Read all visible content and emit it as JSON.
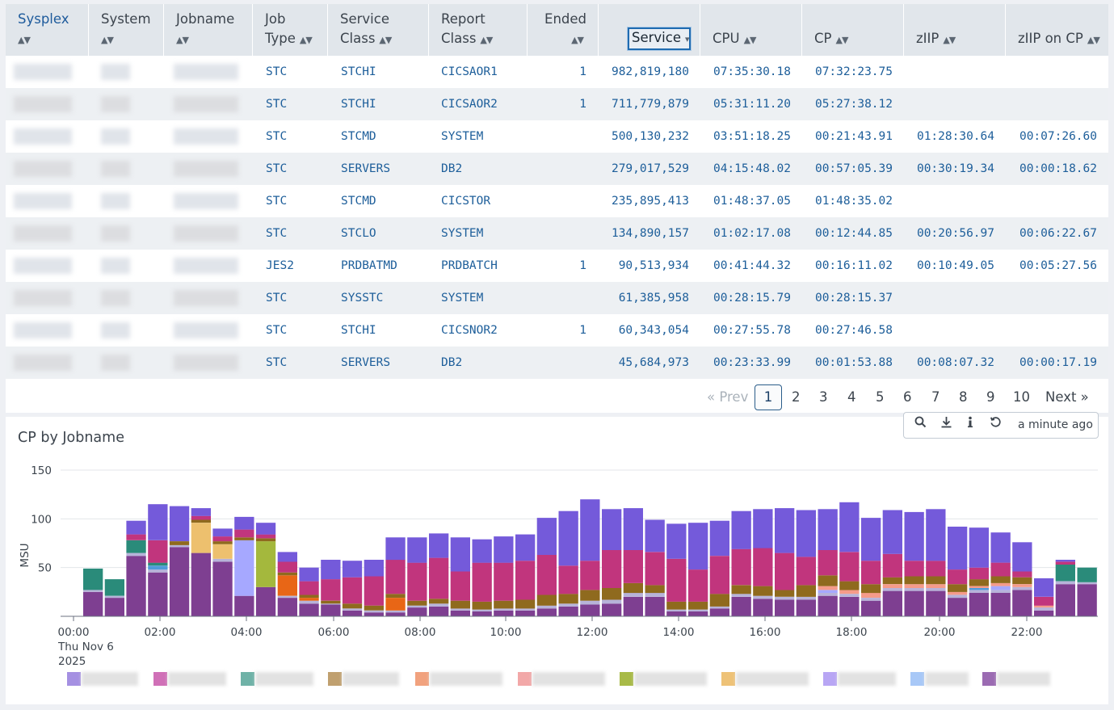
{
  "table": {
    "columns": [
      {
        "line1": "Sysplex",
        "line2": ""
      },
      {
        "line1": "System",
        "line2": ""
      },
      {
        "line1": "Jobname",
        "line2": ""
      },
      {
        "line1": "Job",
        "line2": "Type"
      },
      {
        "line1": "Service",
        "line2": "Class"
      },
      {
        "line1": "Report",
        "line2": "Class"
      },
      {
        "line1": "Ended",
        "line2": ""
      },
      {
        "line1": "",
        "line2": "Service"
      },
      {
        "line1": "",
        "line2": "CPU"
      },
      {
        "line1": "",
        "line2": "CP"
      },
      {
        "line1": "",
        "line2": "zIIP"
      },
      {
        "line1": "",
        "line2": "zIIP on CP"
      }
    ],
    "sorted_column": "Service",
    "rows": [
      {
        "job_type": "STC",
        "service_class": "STCHI",
        "report_class": "CICSAOR1",
        "ended": "1",
        "service": "982,819,180",
        "cpu": "07:35:30.18",
        "cp": "07:32:23.75",
        "ziip": "",
        "ziip_on_cp": ""
      },
      {
        "job_type": "STC",
        "service_class": "STCHI",
        "report_class": "CICSAOR2",
        "ended": "1",
        "service": "711,779,879",
        "cpu": "05:31:11.20",
        "cp": "05:27:38.12",
        "ziip": "",
        "ziip_on_cp": ""
      },
      {
        "job_type": "STC",
        "service_class": "STCMD",
        "report_class": "SYSTEM",
        "ended": "",
        "service": "500,130,232",
        "cpu": "03:51:18.25",
        "cp": "00:21:43.91",
        "ziip": "01:28:30.64",
        "ziip_on_cp": "00:07:26.60"
      },
      {
        "job_type": "STC",
        "service_class": "SERVERS",
        "report_class": "DB2",
        "ended": "",
        "service": "279,017,529",
        "cpu": "04:15:48.02",
        "cp": "00:57:05.39",
        "ziip": "00:30:19.34",
        "ziip_on_cp": "00:00:18.62"
      },
      {
        "job_type": "STC",
        "service_class": "STCMD",
        "report_class": "CICSTOR",
        "ended": "",
        "service": "235,895,413",
        "cpu": "01:48:37.05",
        "cp": "01:48:35.02",
        "ziip": "",
        "ziip_on_cp": ""
      },
      {
        "job_type": "STC",
        "service_class": "STCLO",
        "report_class": "SYSTEM",
        "ended": "",
        "service": "134,890,157",
        "cpu": "01:02:17.08",
        "cp": "00:12:44.85",
        "ziip": "00:20:56.97",
        "ziip_on_cp": "00:06:22.67"
      },
      {
        "job_type": "JES2",
        "service_class": "PRDBATMD",
        "report_class": "PRDBATCH",
        "ended": "1",
        "service": "90,513,934",
        "cpu": "00:41:44.32",
        "cp": "00:16:11.02",
        "ziip": "00:10:49.05",
        "ziip_on_cp": "00:05:27.56"
      },
      {
        "job_type": "STC",
        "service_class": "SYSSTC",
        "report_class": "SYSTEM",
        "ended": "",
        "service": "61,385,958",
        "cpu": "00:28:15.79",
        "cp": "00:28:15.37",
        "ziip": "",
        "ziip_on_cp": ""
      },
      {
        "job_type": "STC",
        "service_class": "STCHI",
        "report_class": "CICSNOR2",
        "ended": "1",
        "service": "60,343,054",
        "cpu": "00:27:55.78",
        "cp": "00:27:46.58",
        "ziip": "",
        "ziip_on_cp": ""
      },
      {
        "job_type": "STC",
        "service_class": "SERVERS",
        "report_class": "DB2",
        "ended": "",
        "service": "45,684,973",
        "cpu": "00:23:33.99",
        "cp": "00:01:53.88",
        "ziip": "00:08:07.32",
        "ziip_on_cp": "00:00:17.19"
      }
    ]
  },
  "pagination": {
    "prev": "« Prev",
    "pages": [
      "1",
      "2",
      "3",
      "4",
      "5",
      "6",
      "7",
      "8",
      "9",
      "10"
    ],
    "current": "1",
    "next": "Next »"
  },
  "chart_panel": {
    "title": "CP by Jobname",
    "toolbar": {
      "icons": [
        "search-icon",
        "download-icon",
        "info-icon",
        "refresh-icon"
      ],
      "updated": "a minute ago"
    }
  },
  "chart_data": {
    "type": "bar",
    "stacked": true,
    "ylabel": "MSU",
    "ylim": [
      0,
      150
    ],
    "yticks": [
      "150",
      "100",
      "50"
    ],
    "xticks": [
      "00:00",
      "02:00",
      "04:00",
      "06:00",
      "08:00",
      "10:00",
      "12:00",
      "14:00",
      "16:00",
      "18:00",
      "20:00",
      "22:00"
    ],
    "x_first_label_extra": [
      "Thu Nov 6",
      "2025"
    ],
    "grid": "horizontal",
    "legend_position": "bottom",
    "series_colors": [
      "#7e3f91",
      "#b7b3d9",
      "#e86616",
      "#edc06e",
      "#a6a8ff",
      "#4f9bd9",
      "#f59b8a",
      "#a4b83d",
      "#2a8b7a",
      "#8f6a1e",
      "#c1357d",
      "#745ada"
    ],
    "legend_colors": [
      "#a590e2",
      "#d070b7",
      "#6fb2a7",
      "#c0a06f",
      "#f1a27e",
      "#f2a8a8",
      "#a8ba47",
      "#eec277",
      "#b8a6f4",
      "#a8c8f7",
      "#9b6bb2"
    ],
    "bars": [
      [
        0,
        0,
        0,
        0,
        0,
        0,
        0,
        0,
        0,
        0,
        0,
        0
      ],
      [
        25,
        2,
        0,
        0,
        0,
        0,
        0,
        0,
        22,
        0,
        0,
        0
      ],
      [
        19,
        2,
        0,
        0,
        0,
        0,
        0,
        0,
        17,
        0,
        0,
        0
      ],
      [
        62,
        3,
        0,
        0,
        0,
        0,
        0,
        0,
        13,
        0,
        6,
        14
      ],
      [
        45,
        3,
        0,
        0,
        0,
        4,
        0,
        0,
        3,
        0,
        23,
        37
      ],
      [
        71,
        2,
        0,
        0,
        0,
        0,
        0,
        0,
        0,
        4,
        0,
        36
      ],
      [
        65,
        0,
        0,
        31,
        0,
        0,
        0,
        0,
        0,
        3,
        4,
        8
      ],
      [
        56,
        3,
        0,
        15,
        0,
        0,
        0,
        0,
        0,
        3,
        5,
        8
      ],
      [
        21,
        0,
        0,
        0,
        57,
        0,
        0,
        0,
        0,
        3,
        8,
        13
      ],
      [
        30,
        0,
        0,
        0,
        0,
        0,
        0,
        47,
        0,
        3,
        4,
        12
      ],
      [
        19,
        2,
        21,
        0,
        0,
        0,
        0,
        0,
        0,
        3,
        11,
        10
      ],
      [
        13,
        3,
        3,
        0,
        0,
        0,
        0,
        0,
        0,
        3,
        14,
        14
      ],
      [
        12,
        1,
        0,
        0,
        0,
        0,
        0,
        0,
        0,
        3,
        22,
        20
      ],
      [
        6,
        2,
        0,
        0,
        0,
        0,
        0,
        0,
        0,
        5,
        27,
        17
      ],
      [
        4,
        2,
        0,
        0,
        0,
        0,
        0,
        0,
        0,
        5,
        30,
        17
      ],
      [
        4,
        2,
        13,
        0,
        0,
        0,
        0,
        0,
        0,
        4,
        35,
        23
      ],
      [
        9,
        2,
        0,
        0,
        0,
        0,
        0,
        0,
        0,
        5,
        39,
        26
      ],
      [
        10,
        3,
        0,
        0,
        0,
        0,
        0,
        0,
        0,
        5,
        42,
        25
      ],
      [
        6,
        2,
        0,
        0,
        0,
        0,
        0,
        0,
        0,
        8,
        30,
        35
      ],
      [
        5,
        2,
        0,
        0,
        0,
        0,
        0,
        0,
        0,
        8,
        40,
        24
      ],
      [
        6,
        2,
        0,
        0,
        0,
        0,
        0,
        0,
        0,
        8,
        39,
        27
      ],
      [
        6,
        2,
        0,
        0,
        0,
        0,
        0,
        0,
        0,
        9,
        40,
        27
      ],
      [
        8,
        3,
        0,
        0,
        0,
        0,
        0,
        0,
        0,
        11,
        41,
        38
      ],
      [
        10,
        3,
        0,
        0,
        0,
        0,
        0,
        0,
        0,
        10,
        29,
        56
      ],
      [
        12,
        4,
        0,
        0,
        0,
        0,
        0,
        0,
        0,
        11,
        30,
        63
      ],
      [
        13,
        4,
        0,
        0,
        0,
        0,
        0,
        0,
        0,
        12,
        39,
        42
      ],
      [
        20,
        4,
        0,
        0,
        0,
        0,
        0,
        0,
        0,
        10,
        34,
        43
      ],
      [
        20,
        4,
        0,
        0,
        0,
        0,
        0,
        0,
        0,
        8,
        34,
        33
      ],
      [
        5,
        2,
        0,
        0,
        0,
        0,
        0,
        0,
        0,
        8,
        44,
        36
      ],
      [
        5,
        2,
        0,
        0,
        0,
        0,
        0,
        0,
        0,
        8,
        33,
        48
      ],
      [
        8,
        2,
        0,
        0,
        0,
        0,
        0,
        0,
        0,
        13,
        39,
        36
      ],
      [
        20,
        3,
        0,
        0,
        0,
        0,
        0,
        0,
        0,
        9,
        37,
        39
      ],
      [
        18,
        3,
        0,
        0,
        0,
        0,
        0,
        0,
        0,
        10,
        39,
        40
      ],
      [
        17,
        3,
        0,
        0,
        0,
        0,
        0,
        0,
        0,
        7,
        38,
        46
      ],
      [
        17,
        3,
        0,
        0,
        0,
        0,
        0,
        0,
        0,
        12,
        29,
        48
      ],
      [
        21,
        3,
        0,
        0,
        3,
        0,
        4,
        0,
        0,
        11,
        26,
        42
      ],
      [
        20,
        3,
        0,
        0,
        0,
        0,
        4,
        0,
        0,
        9,
        30,
        51
      ],
      [
        16,
        3,
        0,
        0,
        0,
        0,
        5,
        0,
        0,
        9,
        24,
        44
      ],
      [
        26,
        3,
        0,
        0,
        0,
        0,
        4,
        0,
        0,
        7,
        24,
        45
      ],
      [
        26,
        3,
        0,
        0,
        0,
        0,
        4,
        0,
        0,
        8,
        16,
        50
      ],
      [
        26,
        3,
        0,
        0,
        0,
        0,
        4,
        0,
        0,
        8,
        16,
        53
      ],
      [
        19,
        3,
        0,
        0,
        0,
        0,
        3,
        0,
        0,
        8,
        15,
        44
      ],
      [
        24,
        3,
        0,
        0,
        0,
        2,
        2,
        0,
        0,
        7,
        12,
        41
      ],
      [
        24,
        3,
        0,
        0,
        4,
        0,
        3,
        0,
        0,
        7,
        14,
        31
      ],
      [
        27,
        3,
        0,
        0,
        0,
        0,
        3,
        0,
        0,
        7,
        6,
        30
      ],
      [
        6,
        3,
        0,
        0,
        0,
        0,
        2,
        0,
        0,
        0,
        9,
        19
      ],
      [
        33,
        3,
        0,
        0,
        0,
        0,
        0,
        0,
        17,
        0,
        3,
        2
      ],
      [
        33,
        2,
        0,
        0,
        0,
        0,
        0,
        0,
        15,
        0,
        0,
        0
      ]
    ]
  }
}
